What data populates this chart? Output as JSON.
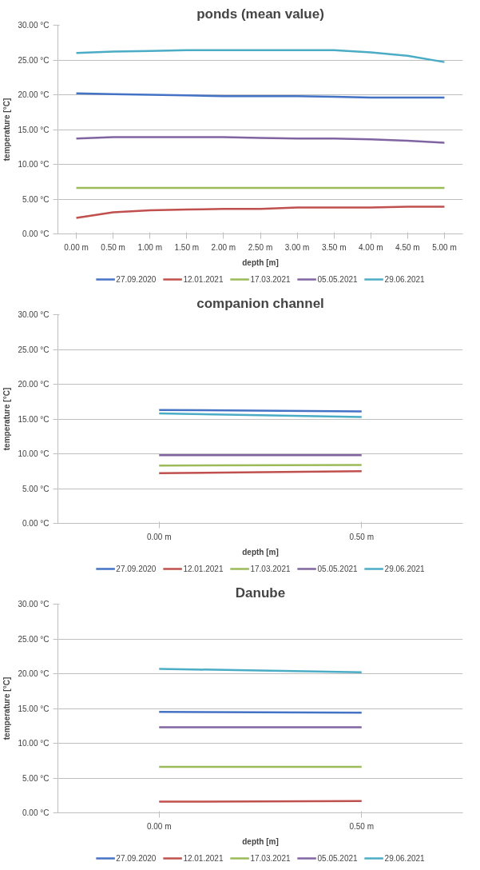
{
  "chart_data": [
    {
      "type": "line",
      "title": "ponds (mean value)",
      "xlabel": "depth [m]",
      "ylabel": "temperature [°C]",
      "categories": [
        "0.00 m",
        "0.50 m",
        "1.00 m",
        "1.50 m",
        "2.00 m",
        "2.50 m",
        "3.00 m",
        "3.50 m",
        "4.00 m",
        "4.50 m",
        "5.00 m"
      ],
      "ylim": [
        0,
        30
      ],
      "yticks": [
        {
          "value": 0,
          "label": "0.00 °C"
        },
        {
          "value": 5,
          "label": "5.00 °C"
        },
        {
          "value": 10,
          "label": "10.00 °C"
        },
        {
          "value": 15,
          "label": "15.00 °C"
        },
        {
          "value": 20,
          "label": "20.00 °C"
        },
        {
          "value": 25,
          "label": "25.00 °C"
        },
        {
          "value": 30,
          "label": "30.00 °C"
        }
      ],
      "grid": "y",
      "legend": "bottom",
      "marker": "none",
      "line_style": "solid",
      "series": [
        {
          "name": "27.09.2020",
          "color": "#4472c4",
          "values": [
            20.2,
            20.1,
            20.0,
            19.9,
            19.8,
            19.8,
            19.8,
            19.7,
            19.6,
            19.6,
            19.6
          ]
        },
        {
          "name": "12.01.2021",
          "color": "#c0504d",
          "values": [
            2.3,
            3.1,
            3.4,
            3.5,
            3.6,
            3.6,
            3.8,
            3.8,
            3.8,
            3.9,
            3.9
          ]
        },
        {
          "name": "17.03.2021",
          "color": "#9bbb59",
          "values": [
            6.6,
            6.6,
            6.6,
            6.6,
            6.6,
            6.6,
            6.6,
            6.6,
            6.6,
            6.6,
            6.6
          ]
        },
        {
          "name": "05.05.2021",
          "color": "#8064a2",
          "values": [
            13.7,
            13.9,
            13.9,
            13.9,
            13.9,
            13.8,
            13.7,
            13.7,
            13.6,
            13.4,
            13.1
          ]
        },
        {
          "name": "29.06.2021",
          "color": "#4bacc6",
          "values": [
            26.0,
            26.2,
            26.3,
            26.4,
            26.4,
            26.4,
            26.4,
            26.4,
            26.1,
            25.6,
            24.7
          ]
        }
      ]
    },
    {
      "type": "line",
      "title": "companion channel",
      "xlabel": "depth [m]",
      "ylabel": "temperature [°C]",
      "categories": [
        "0.00 m",
        "0.50 m"
      ],
      "ylim": [
        0,
        30
      ],
      "yticks": [
        {
          "value": 0,
          "label": "0.00 °C"
        },
        {
          "value": 5,
          "label": "5.00 °C"
        },
        {
          "value": 10,
          "label": "10.00 °C"
        },
        {
          "value": 15,
          "label": "15.00 °C"
        },
        {
          "value": 20,
          "label": "20.00 °C"
        },
        {
          "value": 25,
          "label": "25.00 °C"
        },
        {
          "value": 30,
          "label": "30.00 °C"
        }
      ],
      "grid": "y",
      "legend": "bottom",
      "marker": "none",
      "line_style": "solid",
      "series": [
        {
          "name": "27.09.2020",
          "color": "#4472c4",
          "values": [
            16.3,
            16.1
          ]
        },
        {
          "name": "12.01.2021",
          "color": "#c0504d",
          "values": [
            7.2,
            7.5
          ]
        },
        {
          "name": "17.03.2021",
          "color": "#9bbb59",
          "values": [
            8.3,
            8.4
          ]
        },
        {
          "name": "05.05.2021",
          "color": "#8064a2",
          "values": [
            9.8,
            9.8
          ]
        },
        {
          "name": "29.06.2021",
          "color": "#4bacc6",
          "values": [
            15.8,
            15.3
          ]
        }
      ]
    },
    {
      "type": "line",
      "title": "Danube",
      "xlabel": "depth [m]",
      "ylabel": "temperature [°C]",
      "categories": [
        "0.00 m",
        "0.50 m"
      ],
      "ylim": [
        0,
        30
      ],
      "yticks": [
        {
          "value": 0,
          "label": "0.00 °C"
        },
        {
          "value": 5,
          "label": "5.00 °C"
        },
        {
          "value": 10,
          "label": "10.00 °C"
        },
        {
          "value": 15,
          "label": "15.00 °C"
        },
        {
          "value": 20,
          "label": "20.00 °C"
        },
        {
          "value": 25,
          "label": "25.00 °C"
        },
        {
          "value": 30,
          "label": "30.00 °C"
        }
      ],
      "grid": "y",
      "legend": "bottom",
      "marker": "none",
      "line_style": "solid",
      "series": [
        {
          "name": "27.09.2020",
          "color": "#4472c4",
          "values": [
            14.5,
            14.4
          ]
        },
        {
          "name": "12.01.2021",
          "color": "#c0504d",
          "values": [
            1.6,
            1.7
          ]
        },
        {
          "name": "17.03.2021",
          "color": "#9bbb59",
          "values": [
            6.6,
            6.6
          ]
        },
        {
          "name": "05.05.2021",
          "color": "#8064a2",
          "values": [
            12.3,
            12.3
          ]
        },
        {
          "name": "29.06.2021",
          "color": "#4bacc6",
          "values": [
            20.7,
            20.2
          ]
        }
      ]
    }
  ]
}
